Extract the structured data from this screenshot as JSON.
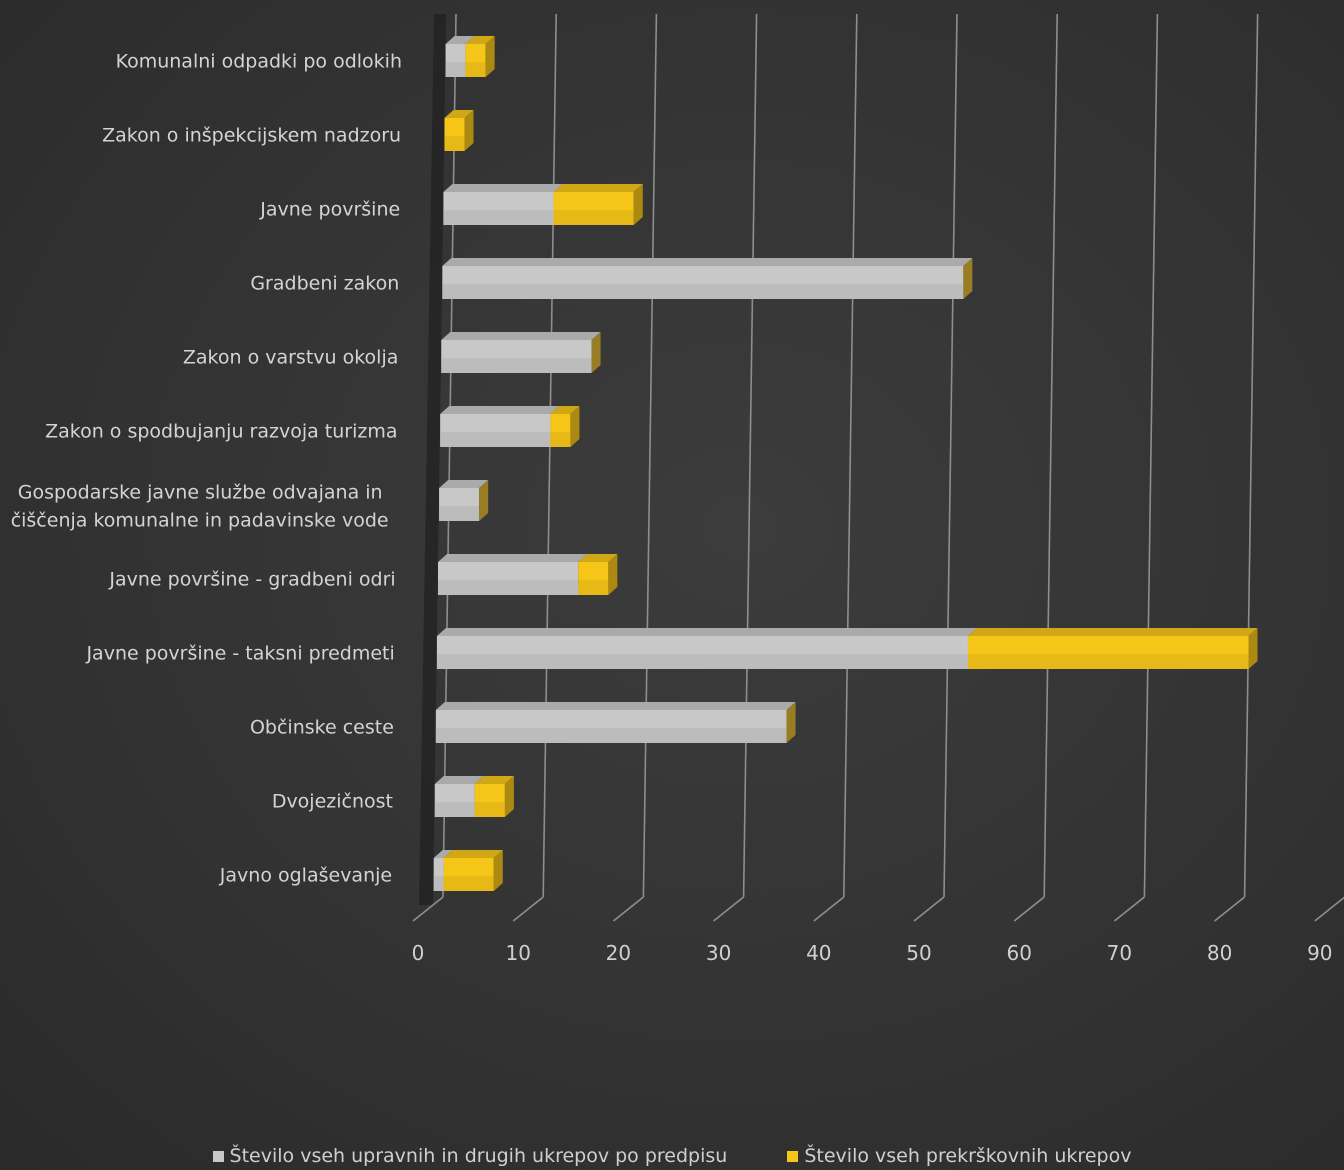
{
  "colors": {
    "background": "#333333",
    "gray_series": "#c8c8c8",
    "yellow_series": "#f5c518",
    "grid": "#8e8e8e",
    "text": "#d4d4d4"
  },
  "chart_data": {
    "type": "bar",
    "orientation": "horizontal",
    "stacked": true,
    "three_d": true,
    "title": "",
    "xlabel": "",
    "ylabel": "",
    "xlim": [
      0,
      90
    ],
    "x_ticks": [
      "0",
      "10",
      "20",
      "30",
      "40",
      "50",
      "60",
      "70",
      "80",
      "90"
    ],
    "grid": true,
    "legend_position": "bottom",
    "categories": [
      "Komunalni odpadki po odlokih",
      "Zakon o inšpekcijskem nadzoru",
      "Javne površine",
      "Gradbeni zakon",
      "Zakon o varstvu okolja",
      "Zakon o spodbujanju razvoja turizma",
      "Gospodarske javne službe odvajana in\nčiščenja komunalne in padavinske vode",
      "Javne površine - gradbeni odri",
      "Javne površine - taksni predmeti",
      "Občinske ceste",
      "Dvojezičnost",
      "Javno oglaševanje"
    ],
    "series": [
      {
        "name": "Število vseh upravnih in drugih ukrepov po predpisu",
        "color": "#c8c8c8",
        "values": [
          2,
          0,
          11,
          52,
          15,
          11,
          4,
          14,
          53,
          35,
          4,
          1
        ]
      },
      {
        "name": "Število vseh prekrškovnih ukrepov",
        "color": "#f5c518",
        "values": [
          2,
          2,
          8,
          0,
          0,
          2,
          0,
          3,
          28,
          0,
          3,
          5
        ]
      }
    ]
  }
}
